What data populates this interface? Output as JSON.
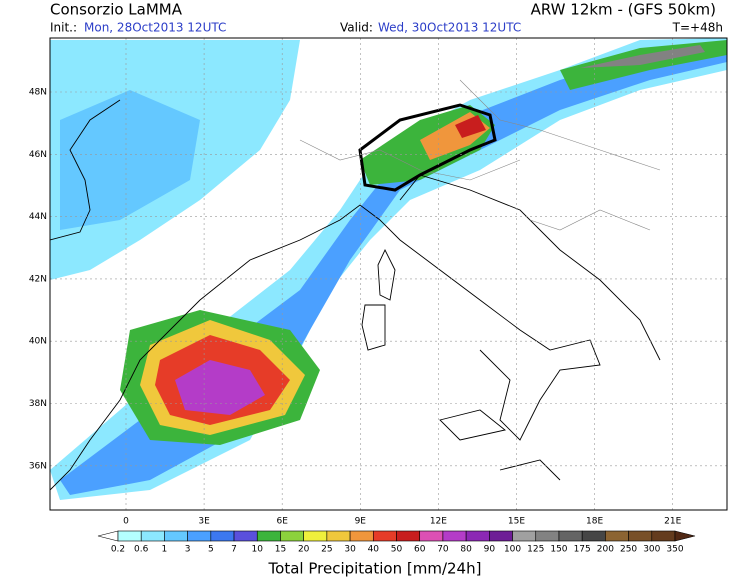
{
  "header": {
    "title": "Consorzio LaMMA",
    "init_label": "Init.:",
    "init": "Mon, 28Oct2013 12UTC",
    "model": "ARW 12km  - (GFS 50km)",
    "valid_label": "Valid:",
    "valid": "Wed, 30Oct2013 12UTC",
    "lead": "T=+48h"
  },
  "map": {
    "lat_labels": [
      "48N",
      "46N",
      "44N",
      "42N",
      "40N",
      "38N",
      "36N"
    ],
    "lon_labels": [
      "0",
      "3E",
      "6E",
      "9E",
      "12E",
      "15E",
      "18E",
      "21E"
    ]
  },
  "legend": {
    "title": "Total Precipitation [mm/24h]",
    "labels": [
      "0.2",
      "0.6",
      "1",
      "3",
      "5",
      "7",
      "10",
      "15",
      "20",
      "25",
      "30",
      "40",
      "50",
      "60",
      "70",
      "80",
      "90",
      "100",
      "125",
      "150",
      "175",
      "200",
      "250",
      "300",
      "350"
    ],
    "colors": [
      "#ffffff",
      "#b4ffff",
      "#8ce8ff",
      "#64c8ff",
      "#4ba0ff",
      "#3c78f0",
      "#5a50dc",
      "#3cb43c",
      "#8cd23c",
      "#f0f03c",
      "#f0c83c",
      "#f0963c",
      "#e63c28",
      "#c81e1e",
      "#dc50b4",
      "#b43cc8",
      "#8c28b4",
      "#6e1e96",
      "#a0a0a0",
      "#828282",
      "#646464",
      "#464646",
      "#8c6432",
      "#785028",
      "#643c1e",
      "#502814"
    ]
  }
}
